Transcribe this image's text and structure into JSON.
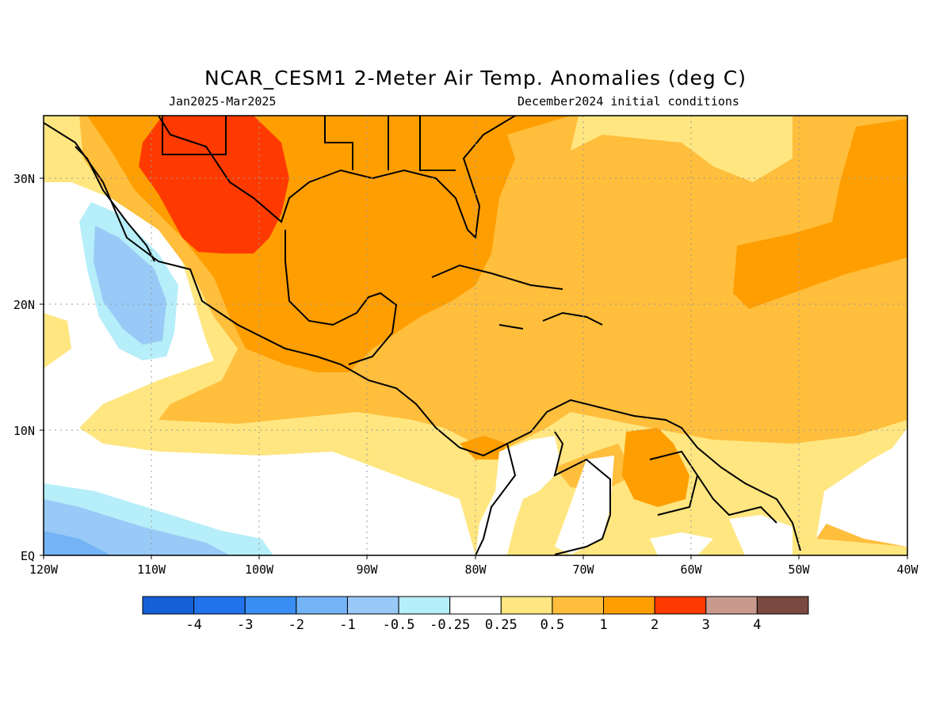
{
  "title": "NCAR_CESM1 2-Meter Air Temp. Anomalies (deg C)",
  "period": "Jan2025-Mar2025",
  "init": "December2024 initial conditions",
  "map": {
    "lon_labels": [
      "120W",
      "110W",
      "100W",
      "90W",
      "80W",
      "70W",
      "60W",
      "50W",
      "40W"
    ],
    "lat_labels": [
      "EQ",
      "10N",
      "20N",
      "30N"
    ]
  },
  "colorbar": {
    "colors": [
      "#1560d6",
      "#2272ec",
      "#3a8df2",
      "#74b3f5",
      "#98c9f7",
      "#b6eef9",
      "#ffffff",
      "#ffe680",
      "#ffbe3c",
      "#ff9e00",
      "#ff3a00",
      "#c89a8e",
      "#7a4a40"
    ],
    "labels": [
      "-4",
      "-3",
      "-2",
      "-1",
      "-0.5",
      "-0.25",
      "0.25",
      "0.5",
      "1",
      "2",
      "3",
      "4"
    ]
  }
}
